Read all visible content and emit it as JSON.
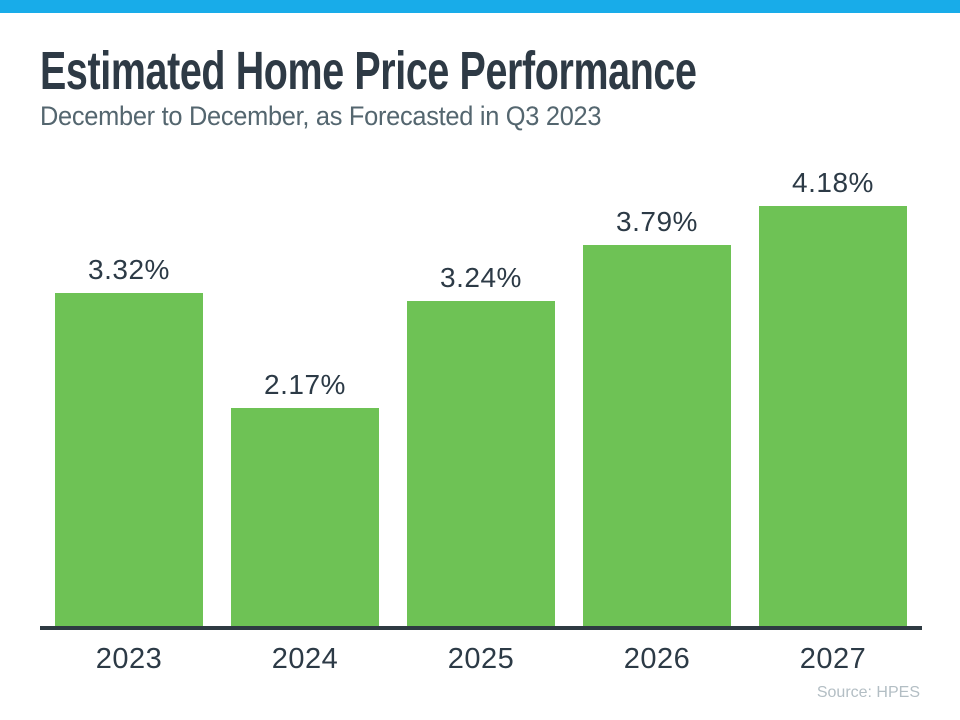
{
  "header": {
    "title": "Estimated Home Price Performance",
    "subtitle": "December to December, as Forecasted in Q3 2023"
  },
  "footer": {
    "source": "Source: HPES"
  },
  "colors": {
    "accent_stripe": "#18ace9",
    "bar_fill": "#6ec255",
    "title_text": "#2e3a45",
    "subtitle_text": "#54666f",
    "label_text": "#2c3a46",
    "axis_line": "#2e3a42",
    "source_text": "#b3bec4"
  },
  "chart_data": {
    "type": "bar",
    "title": "Estimated Home Price Performance",
    "subtitle": "December to December, as Forecasted in Q3 2023",
    "categories": [
      "2023",
      "2024",
      "2025",
      "2026",
      "2027"
    ],
    "values": [
      3.32,
      2.17,
      3.24,
      3.79,
      4.18
    ],
    "value_labels": [
      "3.32%",
      "2.17%",
      "3.24%",
      "3.79%",
      "4.18%"
    ],
    "unit": "%",
    "xlabel": "",
    "ylabel": "",
    "ylim": [
      0,
      4.5
    ],
    "grid": false,
    "legend": false,
    "bar_color": "#6ec255",
    "source": "Source: HPES"
  }
}
